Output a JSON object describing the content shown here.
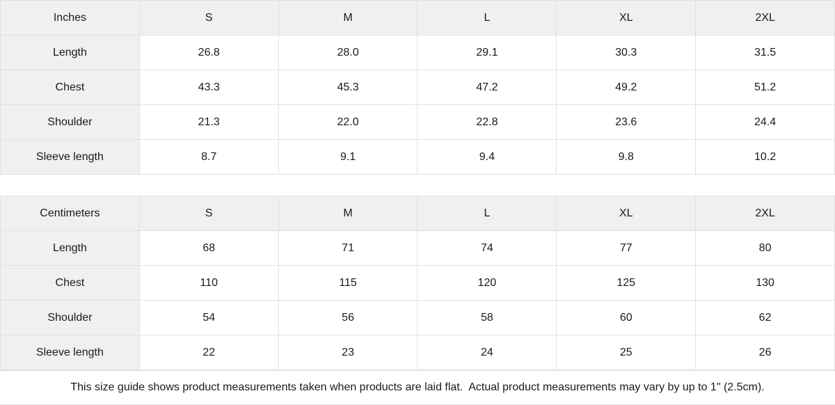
{
  "colors": {
    "header_bg": "#f0f0f0",
    "border": "#e0e0e0",
    "text": "#1a1a1a",
    "background": "#ffffff"
  },
  "chart_data": {
    "type": "table",
    "tables": [
      {
        "unit_label": "Inches",
        "sizes": [
          "S",
          "M",
          "L",
          "XL",
          "2XL"
        ],
        "rows": [
          {
            "label": "Length",
            "values": [
              "26.8",
              "28.0",
              "29.1",
              "30.3",
              "31.5"
            ]
          },
          {
            "label": "Chest",
            "values": [
              "43.3",
              "45.3",
              "47.2",
              "49.2",
              "51.2"
            ]
          },
          {
            "label": "Shoulder",
            "values": [
              "21.3",
              "22.0",
              "22.8",
              "23.6",
              "24.4"
            ]
          },
          {
            "label": "Sleeve length",
            "values": [
              "8.7",
              "9.1",
              "9.4",
              "9.8",
              "10.2"
            ]
          }
        ]
      },
      {
        "unit_label": "Centimeters",
        "sizes": [
          "S",
          "M",
          "L",
          "XL",
          "2XL"
        ],
        "rows": [
          {
            "label": "Length",
            "values": [
              "68",
              "71",
              "74",
              "77",
              "80"
            ]
          },
          {
            "label": "Chest",
            "values": [
              "110",
              "115",
              "120",
              "125",
              "130"
            ]
          },
          {
            "label": "Shoulder",
            "values": [
              "54",
              "56",
              "58",
              "60",
              "62"
            ]
          },
          {
            "label": "Sleeve length",
            "values": [
              "22",
              "23",
              "24",
              "25",
              "26"
            ]
          }
        ]
      }
    ]
  },
  "footer": {
    "note": "This size guide shows product measurements taken when products are laid flat.  Actual product measurements may vary by up to 1\" (2.5cm)."
  }
}
